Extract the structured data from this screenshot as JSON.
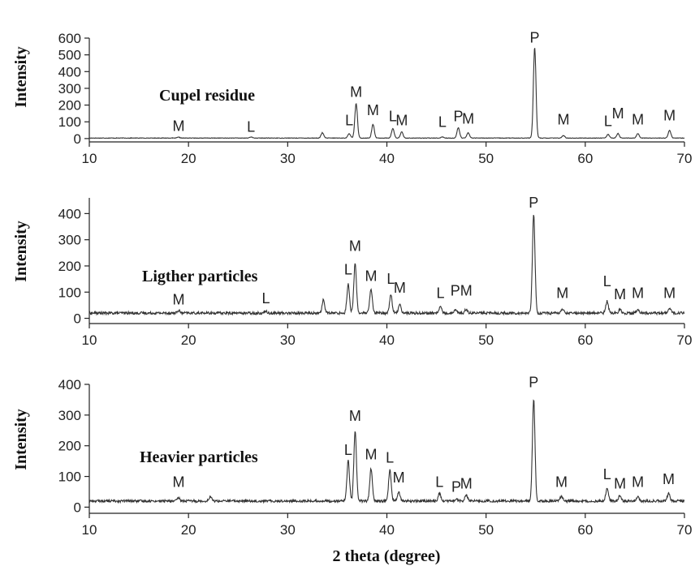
{
  "chart_data": [
    {
      "type": "line",
      "title": "Cupel residue",
      "ylabel": "Intensity",
      "xlabel": "",
      "xlim": [
        10,
        70
      ],
      "ylim": [
        -20,
        600
      ],
      "xticks": [
        10,
        20,
        30,
        40,
        50,
        60,
        70
      ],
      "yticks": [
        0,
        100,
        200,
        300,
        400,
        500,
        600
      ],
      "baseline": 3,
      "noise": 1.5,
      "peaks": [
        {
          "x": 19.0,
          "y": 8,
          "label": "M",
          "ly": 25
        },
        {
          "x": 26.3,
          "y": 10,
          "label": "L",
          "ly": 20
        },
        {
          "x": 33.5,
          "y": 35
        },
        {
          "x": 36.2,
          "y": 30,
          "label": "L",
          "ly": 60
        },
        {
          "x": 36.9,
          "y": 210,
          "label": "M",
          "ly": 230
        },
        {
          "x": 38.6,
          "y": 85,
          "label": "M",
          "ly": 120
        },
        {
          "x": 40.6,
          "y": 60,
          "label": "L",
          "ly": 85
        },
        {
          "x": 41.5,
          "y": 40,
          "label": "M",
          "ly": 60
        },
        {
          "x": 45.6,
          "y": 10,
          "label": "L",
          "ly": 50
        },
        {
          "x": 47.2,
          "y": 65,
          "label": "P",
          "ly": 85
        },
        {
          "x": 48.2,
          "y": 35,
          "label": "M",
          "ly": 70
        },
        {
          "x": 54.9,
          "y": 545,
          "label": "P",
          "ly": 555
        },
        {
          "x": 57.8,
          "y": 18,
          "label": "M",
          "ly": 65
        },
        {
          "x": 62.3,
          "y": 25,
          "label": "L",
          "ly": 55
        },
        {
          "x": 63.3,
          "y": 30,
          "label": "M",
          "ly": 100
        },
        {
          "x": 65.3,
          "y": 30,
          "label": "M",
          "ly": 65
        },
        {
          "x": 68.5,
          "y": 50,
          "label": "M",
          "ly": 90
        }
      ]
    },
    {
      "type": "line",
      "title": "Ligther particles",
      "ylabel": "Intensity",
      "xlabel": "",
      "xlim": [
        10,
        70
      ],
      "ylim": [
        -20,
        460
      ],
      "xticks": [
        10,
        20,
        30,
        40,
        50,
        60,
        70
      ],
      "yticks": [
        0,
        100,
        200,
        300,
        400
      ],
      "baseline": 20,
      "noise": 5,
      "peaks": [
        {
          "x": 19.0,
          "y": 30,
          "label": "M",
          "ly": 40
        },
        {
          "x": 27.8,
          "y": 28,
          "label": "L",
          "ly": 45
        },
        {
          "x": 33.6,
          "y": 70
        },
        {
          "x": 36.1,
          "y": 130,
          "label": "L",
          "ly": 155
        },
        {
          "x": 36.8,
          "y": 210,
          "label": "M",
          "ly": 245
        },
        {
          "x": 38.4,
          "y": 110,
          "label": "M",
          "ly": 130
        },
        {
          "x": 40.4,
          "y": 90,
          "label": "L",
          "ly": 120
        },
        {
          "x": 41.3,
          "y": 55,
          "label": "M",
          "ly": 85
        },
        {
          "x": 45.4,
          "y": 45,
          "label": "L",
          "ly": 65
        },
        {
          "x": 46.9,
          "y": 35,
          "label": "P",
          "ly": 75
        },
        {
          "x": 48.0,
          "y": 35,
          "label": "M",
          "ly": 75
        },
        {
          "x": 54.8,
          "y": 395,
          "label": "P",
          "ly": 410
        },
        {
          "x": 57.7,
          "y": 35,
          "label": "M",
          "ly": 65
        },
        {
          "x": 62.2,
          "y": 65,
          "label": "L",
          "ly": 110
        },
        {
          "x": 63.5,
          "y": 35,
          "label": "M",
          "ly": 60
        },
        {
          "x": 65.3,
          "y": 35,
          "label": "M",
          "ly": 65
        },
        {
          "x": 68.5,
          "y": 40,
          "label": "M",
          "ly": 65
        }
      ]
    },
    {
      "type": "line",
      "title": "Heavier particles",
      "ylabel": "Intensity",
      "xlabel": "2 theta (degree)",
      "xlim": [
        10,
        70
      ],
      "ylim": [
        -20,
        400
      ],
      "xticks": [
        10,
        20,
        30,
        40,
        50,
        60,
        70
      ],
      "yticks": [
        0,
        100,
        200,
        300,
        400
      ],
      "baseline": 20,
      "noise": 4,
      "peaks": [
        {
          "x": 19.0,
          "y": 30,
          "label": "M",
          "ly": 55
        },
        {
          "x": 22.2,
          "y": 35
        },
        {
          "x": 36.1,
          "y": 150,
          "label": "L",
          "ly": 160
        },
        {
          "x": 36.8,
          "y": 250,
          "label": "M",
          "ly": 270
        },
        {
          "x": 38.4,
          "y": 125,
          "label": "M",
          "ly": 145
        },
        {
          "x": 40.3,
          "y": 120,
          "label": "L",
          "ly": 135
        },
        {
          "x": 41.2,
          "y": 50,
          "label": "M",
          "ly": 70
        },
        {
          "x": 45.3,
          "y": 45,
          "label": "L",
          "ly": 55
        },
        {
          "x": 47.0,
          "y": 25,
          "label": "P",
          "ly": 40
        },
        {
          "x": 48.0,
          "y": 40,
          "label": "M",
          "ly": 50
        },
        {
          "x": 54.8,
          "y": 350,
          "label": "P",
          "ly": 380
        },
        {
          "x": 57.6,
          "y": 35,
          "label": "M",
          "ly": 55
        },
        {
          "x": 62.2,
          "y": 60,
          "label": "L",
          "ly": 80
        },
        {
          "x": 63.5,
          "y": 40,
          "label": "M",
          "ly": 50
        },
        {
          "x": 65.3,
          "y": 35,
          "label": "M",
          "ly": 55
        },
        {
          "x": 68.4,
          "y": 45,
          "label": "M",
          "ly": 65
        }
      ]
    }
  ]
}
